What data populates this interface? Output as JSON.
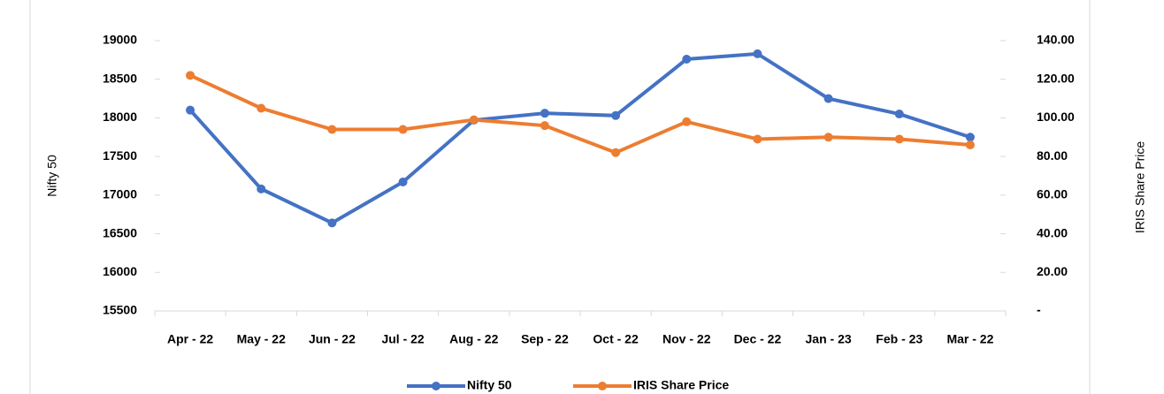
{
  "chart_data": {
    "type": "line",
    "categories": [
      "Apr - 22",
      "May - 22",
      "Jun - 22",
      "Jul - 22",
      "Aug - 22",
      "Sep - 22",
      "Oct - 22",
      "Nov - 22",
      "Dec - 22",
      "Jan - 23",
      "Feb - 23",
      "Mar - 22"
    ],
    "y_label": "Nifty 50",
    "y2_label": "IRIS Share Price",
    "ylim": [
      15500,
      19000
    ],
    "yticks": [
      15500,
      16000,
      16500,
      17000,
      17500,
      18000,
      18500,
      19000
    ],
    "y2lim": [
      0,
      140
    ],
    "y2ticks": [
      {
        "value": 0,
        "label": "-"
      },
      {
        "value": 20,
        "label": "20.00"
      },
      {
        "value": 40,
        "label": "40.00"
      },
      {
        "value": 60,
        "label": "60.00"
      },
      {
        "value": 80,
        "label": "80.00"
      },
      {
        "value": 100,
        "label": "100.00"
      },
      {
        "value": 120,
        "label": "120.00"
      },
      {
        "value": 140,
        "label": "140.00"
      }
    ],
    "legend": "bottom",
    "series": [
      {
        "name": "Nifty 50",
        "color": "#4472c4",
        "values": [
          18100,
          17080,
          16640,
          17170,
          17970,
          18060,
          18030,
          18760,
          18830,
          18250,
          18050,
          17750
        ]
      },
      {
        "name": "IRIS Share Price",
        "color": "#ed7d31",
        "axis": "y2",
        "values": [
          122,
          105,
          94,
          94,
          99,
          96,
          82,
          98,
          89,
          90,
          89,
          86
        ]
      }
    ]
  }
}
